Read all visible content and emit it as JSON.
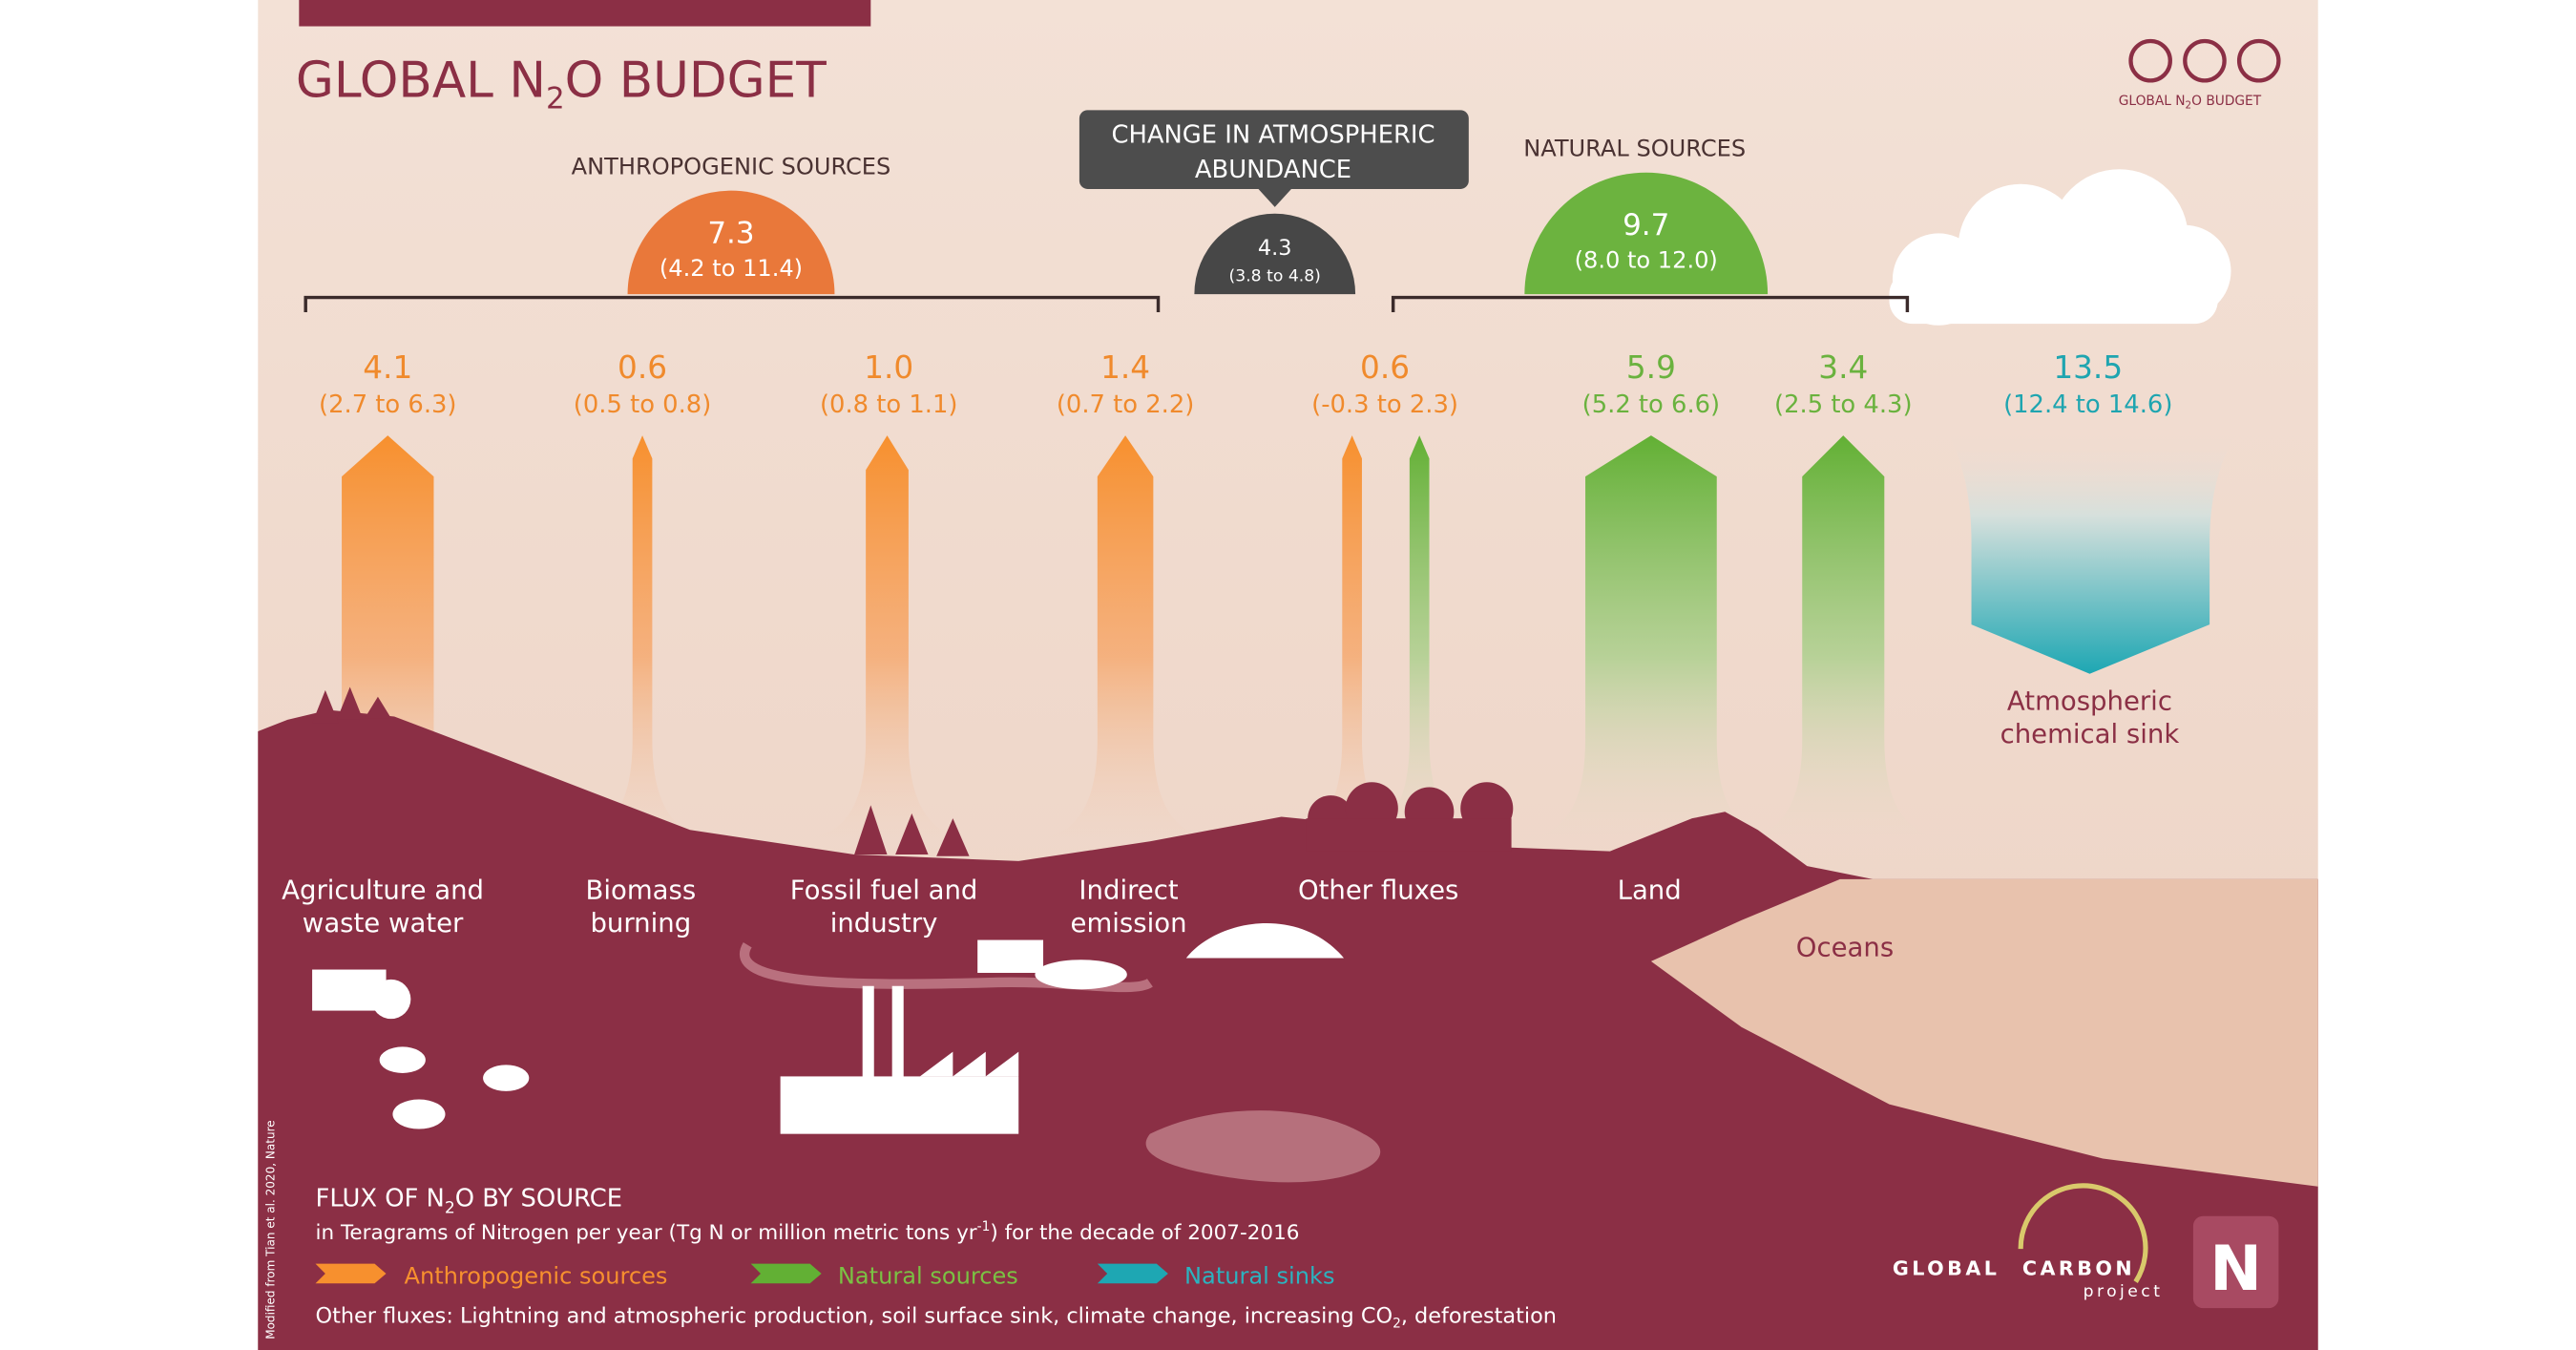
{
  "header": {
    "title_parts": [
      "GLOBAL N",
      "2",
      "O BUDGET"
    ],
    "license_caption_parts": [
      "GLOBAL N",
      "2",
      "O BUDGET"
    ]
  },
  "groups": {
    "anthropogenic": {
      "label": "ANTHROPOGENIC SOURCES",
      "total": "7.3",
      "range": "(4.2 to 11.4)"
    },
    "change": {
      "label_lines": [
        "CHANGE IN ATMOSPHERIC",
        "ABUNDANCE"
      ],
      "total": "4.3",
      "range": "(3.8 to 4.8)"
    },
    "natural": {
      "label": "NATURAL SOURCES",
      "total": "9.7",
      "range": "(8.0 to 12.0)"
    }
  },
  "fluxes": [
    {
      "value": "4.1",
      "range": "(2.7 to 6.3)",
      "label_lines": [
        "Agriculture and",
        "waste water"
      ]
    },
    {
      "value": "0.6",
      "range": "(0.5 to 0.8)",
      "label_lines": [
        "Biomass",
        "burning"
      ]
    },
    {
      "value": "1.0",
      "range": "(0.8 to 1.1)",
      "label_lines": [
        "Fossil fuel and",
        "industry"
      ]
    },
    {
      "value": "1.4",
      "range": "(0.7 to 2.2)",
      "label_lines": [
        "Indirect",
        "emission"
      ]
    },
    {
      "value": "0.6",
      "range": "(-0.3 to 2.3)",
      "label_lines": [
        "Other fluxes"
      ]
    },
    {
      "value": "5.9",
      "range": "(5.2 to 6.6)",
      "label_lines": [
        "Land"
      ]
    },
    {
      "value": "3.4",
      "range": "(2.5 to 4.3)",
      "label_lines": [
        "Oceans"
      ]
    },
    {
      "value": "13.5",
      "range": "(12.4 to 14.6)",
      "label_lines": [
        "Atmospheric",
        "chemical sink"
      ]
    }
  ],
  "footer": {
    "heading_parts": [
      "FLUX OF N",
      "2",
      "O BY SOURCE"
    ],
    "units_parts": [
      "in Teragrams of Nitrogen per year (Tg N or million metric tons yr",
      "-1",
      ") for the decade of 2007-2016"
    ],
    "legend": [
      "Anthropogenic sources",
      "Natural sources",
      "Natural sinks"
    ],
    "other_parts": [
      "Other fluxes: Lightning and atmospheric production, soil surface sink, climate change, increasing CO",
      "2",
      ", deforestation"
    ],
    "citation": "Modified from Tian et al. 2020, Nature"
  },
  "logos": {
    "gcp": [
      "GLOBAL",
      "CARBON",
      "project"
    ],
    "n": "N"
  }
}
